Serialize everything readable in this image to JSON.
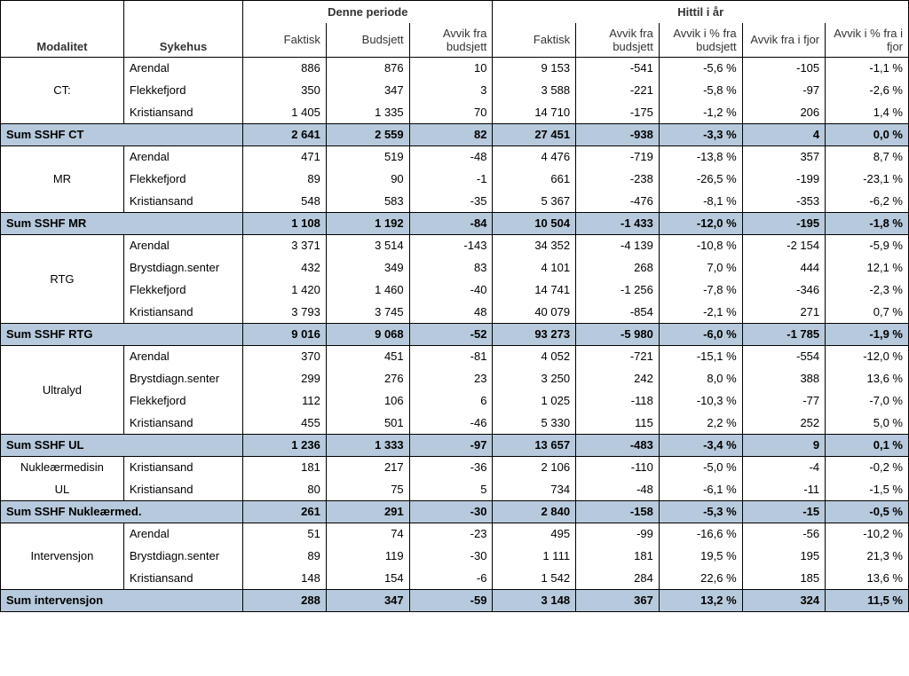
{
  "headers": {
    "modalitet": "Modalitet",
    "sykehus": "Sykehus",
    "group_period": "Denne periode",
    "group_ytd": "Hittil i år",
    "faktisk": "Faktisk",
    "budsjett": "Budsjett",
    "avvik_budsjett": "Avvik fra budsjett",
    "faktisk2": "Faktisk",
    "avvik_budsjett2": "Avvik fra budsjett",
    "avvik_pct_budsjett": "Avvik i % fra budsjett",
    "avvik_fjor": "Avvik fra i fjor",
    "avvik_pct_fjor": "Avvik i % fra i fjor"
  },
  "style": {
    "sum_row_bg": "#b7c9dc",
    "alt_row_bg": "#ffffff",
    "border_color": "#000000",
    "text_color": "#333333",
    "font_size": 13
  },
  "groups": [
    {
      "modalitet": "CT:",
      "rows": [
        {
          "sykehus": "Arendal",
          "c": [
            "886",
            "876",
            "10",
            "9 153",
            "-541",
            "-5,6 %",
            "-105",
            "-1,1 %"
          ]
        },
        {
          "sykehus": "Flekkefjord",
          "c": [
            "350",
            "347",
            "3",
            "3 588",
            "-221",
            "-5,8 %",
            "-97",
            "-2,6 %"
          ]
        },
        {
          "sykehus": "Kristiansand",
          "c": [
            "1 405",
            "1 335",
            "70",
            "14 710",
            "-175",
            "-1,2 %",
            "206",
            "1,4 %"
          ]
        }
      ],
      "sum": {
        "label": "Sum SSHF CT",
        "c": [
          "2 641",
          "2 559",
          "82",
          "27 451",
          "-938",
          "-3,3 %",
          "4",
          "0,0 %"
        ]
      }
    },
    {
      "modalitet": "MR",
      "rows": [
        {
          "sykehus": "Arendal",
          "c": [
            "471",
            "519",
            "-48",
            "4 476",
            "-719",
            "-13,8 %",
            "357",
            "8,7 %"
          ]
        },
        {
          "sykehus": "Flekkefjord",
          "c": [
            "89",
            "90",
            "-1",
            "661",
            "-238",
            "-26,5 %",
            "-199",
            "-23,1 %"
          ]
        },
        {
          "sykehus": "Kristiansand",
          "c": [
            "548",
            "583",
            "-35",
            "5 367",
            "-476",
            "-8,1 %",
            "-353",
            "-6,2 %"
          ]
        }
      ],
      "sum": {
        "label": "Sum SSHF MR",
        "c": [
          "1 108",
          "1 192",
          "-84",
          "10 504",
          "-1 433",
          "-12,0 %",
          "-195",
          "-1,8 %"
        ]
      }
    },
    {
      "modalitet": "RTG",
      "rows": [
        {
          "sykehus": "Arendal",
          "c": [
            "3 371",
            "3 514",
            "-143",
            "34 352",
            "-4 139",
            "-10,8 %",
            "-2 154",
            "-5,9 %"
          ]
        },
        {
          "sykehus": "Brystdiagn.senter",
          "c": [
            "432",
            "349",
            "83",
            "4 101",
            "268",
            "7,0 %",
            "444",
            "12,1 %"
          ]
        },
        {
          "sykehus": "Flekkefjord",
          "c": [
            "1 420",
            "1 460",
            "-40",
            "14 741",
            "-1 256",
            "-7,8 %",
            "-346",
            "-2,3 %"
          ]
        },
        {
          "sykehus": "Kristiansand",
          "c": [
            "3 793",
            "3 745",
            "48",
            "40 079",
            "-854",
            "-2,1 %",
            "271",
            "0,7 %"
          ]
        }
      ],
      "sum": {
        "label": "Sum SSHF RTG",
        "c": [
          "9 016",
          "9 068",
          "-52",
          "93 273",
          "-5 980",
          "-6,0 %",
          "-1 785",
          "-1,9 %"
        ]
      }
    },
    {
      "modalitet": "Ultralyd",
      "rows": [
        {
          "sykehus": "Arendal",
          "c": [
            "370",
            "451",
            "-81",
            "4 052",
            "-721",
            "-15,1 %",
            "-554",
            "-12,0 %"
          ]
        },
        {
          "sykehus": "Brystdiagn.senter",
          "c": [
            "299",
            "276",
            "23",
            "3 250",
            "242",
            "8,0 %",
            "388",
            "13,6 %"
          ]
        },
        {
          "sykehus": "Flekkefjord",
          "c": [
            "112",
            "106",
            "6",
            "1 025",
            "-118",
            "-10,3 %",
            "-77",
            "-7,0 %"
          ]
        },
        {
          "sykehus": "Kristiansand",
          "c": [
            "455",
            "501",
            "-46",
            "5 330",
            "115",
            "2,2 %",
            "252",
            "5,0 %"
          ]
        }
      ],
      "sum": {
        "label": "Sum SSHF UL",
        "c": [
          "1 236",
          "1 333",
          "-97",
          "13 657",
          "-483",
          "-3,4 %",
          "9",
          "0,1 %"
        ]
      }
    },
    {
      "modalitet_multi": [
        "Nukleærmedisin",
        "UL"
      ],
      "rows": [
        {
          "sykehus": "Kristiansand",
          "c": [
            "181",
            "217",
            "-36",
            "2 106",
            "-110",
            "-5,0 %",
            "-4",
            "-0,2 %"
          ]
        },
        {
          "sykehus": "Kristiansand",
          "c": [
            "80",
            "75",
            "5",
            "734",
            "-48",
            "-6,1 %",
            "-11",
            "-1,5 %"
          ]
        }
      ],
      "sum": {
        "label": "Sum SSHF Nukleærmed.",
        "c": [
          "261",
          "291",
          "-30",
          "2 840",
          "-158",
          "-5,3 %",
          "-15",
          "-0,5 %"
        ]
      }
    },
    {
      "modalitet": "Intervensjon",
      "rows": [
        {
          "sykehus": "Arendal",
          "c": [
            "51",
            "74",
            "-23",
            "495",
            "-99",
            "-16,6 %",
            "-56",
            "-10,2 %"
          ]
        },
        {
          "sykehus": "Brystdiagn.senter",
          "c": [
            "89",
            "119",
            "-30",
            "1 111",
            "181",
            "19,5 %",
            "195",
            "21,3 %"
          ]
        },
        {
          "sykehus": "Kristiansand",
          "c": [
            "148",
            "154",
            "-6",
            "1 542",
            "284",
            "22,6 %",
            "185",
            "13,6 %"
          ]
        }
      ],
      "sum": {
        "label": "Sum intervensjon",
        "c": [
          "288",
          "347",
          "-59",
          "3 148",
          "367",
          "13,2 %",
          "324",
          "11,5 %"
        ]
      }
    }
  ]
}
